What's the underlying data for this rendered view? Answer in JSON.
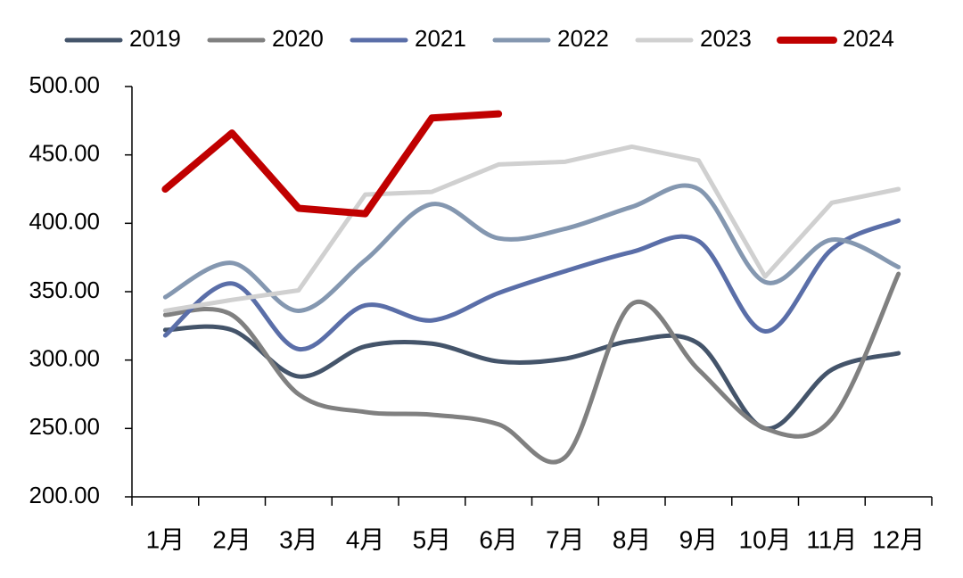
{
  "chart_data": {
    "type": "line",
    "categories": [
      "1月",
      "2月",
      "3月",
      "4月",
      "5月",
      "6月",
      "7月",
      "8月",
      "9月",
      "10月",
      "11月",
      "12月"
    ],
    "series": [
      {
        "name": "2019",
        "color": "#44546a",
        "smooth": true,
        "values": [
          322,
          322,
          288,
          310,
          312,
          299,
          301,
          314,
          312,
          250,
          293,
          305
        ]
      },
      {
        "name": "2020",
        "color": "#808080",
        "smooth": true,
        "values": [
          333,
          333,
          275,
          262,
          260,
          253,
          229,
          341,
          293,
          250,
          257,
          363
        ]
      },
      {
        "name": "2021",
        "color": "#5a6ea8",
        "smooth": true,
        "values": [
          318,
          356,
          308,
          340,
          329,
          349,
          365,
          379,
          387,
          321,
          381,
          402
        ]
      },
      {
        "name": "2022",
        "color": "#8497b0",
        "smooth": true,
        "values": [
          346,
          371,
          336,
          373,
          414,
          389,
          396,
          412,
          425,
          357,
          388,
          368
        ]
      },
      {
        "name": "2023",
        "color": "#d0d0d0",
        "smooth": false,
        "values": [
          336,
          344,
          351,
          421,
          423,
          443,
          445,
          456,
          446,
          361,
          415,
          425
        ]
      },
      {
        "name": "2024",
        "color": "#c00000",
        "smooth": false,
        "values": [
          425,
          466,
          411,
          407,
          477,
          480,
          null,
          null,
          null,
          null,
          null,
          null
        ]
      }
    ],
    "ylim": [
      200,
      500
    ],
    "yticks": [
      {
        "value": 200,
        "label": "200.00"
      },
      {
        "value": 250,
        "label": "250.00"
      },
      {
        "value": 300,
        "label": "300.00"
      },
      {
        "value": 350,
        "label": "350.00"
      },
      {
        "value": 400,
        "label": "400.00"
      },
      {
        "value": 450,
        "label": "450.00"
      },
      {
        "value": 500,
        "label": "500.00"
      }
    ],
    "legend": "top"
  }
}
